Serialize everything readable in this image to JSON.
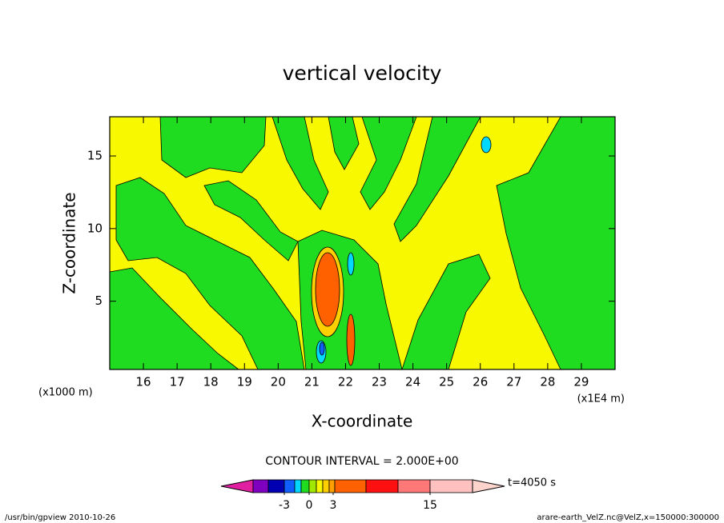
{
  "chart_data": {
    "type": "contour",
    "title": "vertical velocity",
    "x_label": "X-coordinate",
    "y_label": "Z-coordinate",
    "x_unit_left": "(x1000 m)",
    "x_unit_right": "(x1E4 m)",
    "xlim": [
      15,
      30
    ],
    "ylim": [
      0.3,
      17.7
    ],
    "xticks": [
      16,
      17,
      18,
      19,
      20,
      21,
      22,
      23,
      24,
      25,
      26,
      27,
      28,
      29
    ],
    "yticks": [
      5,
      10,
      15
    ],
    "contour_interval": "CONTOUR INTERVAL = 2.000E+00",
    "time_label": "t=4050 s",
    "colorbar": {
      "colors": [
        "#e020a0",
        "#8000c0",
        "#0000b0",
        "#1060ff",
        "#00d8ff",
        "#20dc20",
        "#a0e800",
        "#f8f800",
        "#ffd000",
        "#ffa000",
        "#ff6000",
        "#ff1010",
        "#ff7878",
        "#ffc0c0",
        "#fcd4cc"
      ],
      "ticks": [
        -3,
        0,
        3,
        15
      ]
    },
    "footer_left": "/usr/bin/gpview  2010-10-26",
    "footer_right": "arare-earth_VelZ.nc@VelZ,x=150000:300000"
  }
}
